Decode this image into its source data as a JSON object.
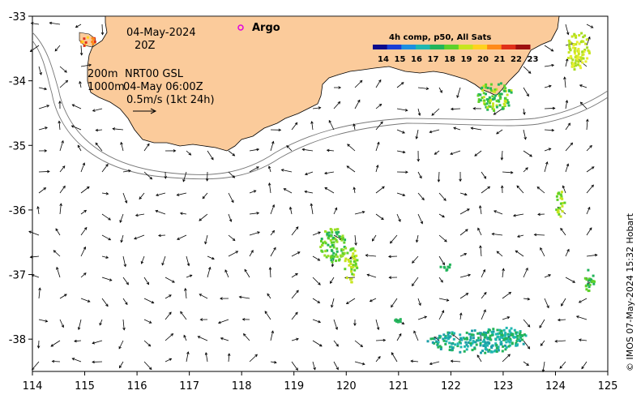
{
  "map": {
    "lon_ticks": [
      "114",
      "115",
      "116",
      "117",
      "118",
      "119",
      "120",
      "121",
      "122",
      "123",
      "124",
      "125"
    ],
    "lat_ticks": [
      "-33",
      "-34",
      "-35",
      "-36",
      "-37",
      "-38"
    ],
    "lon_range": [
      114,
      125
    ],
    "lat_range": [
      -38.5,
      -33
    ]
  },
  "annotations": {
    "date": "04-May-2024",
    "hour": "20Z",
    "isobath_shallow": "200m",
    "isobath_deep": "1000m",
    "current_product": "NRT00 GSL",
    "current_time": "04-May 06:00Z",
    "scale_text": "0.5m/s (1kt 24h)",
    "argo_label": "Argo"
  },
  "colorbar": {
    "title": "4h comp, p50, All Sats",
    "labels": [
      "14",
      "15",
      "16",
      "17",
      "18",
      "19",
      "20",
      "21",
      "22",
      "23"
    ],
    "colors": [
      "#0b0b8c",
      "#1a3fd6",
      "#1d8fe0",
      "#1fb7b0",
      "#22b45a",
      "#5ed12a",
      "#c7e51f",
      "#ffd21f",
      "#ff8a1a",
      "#e0301a",
      "#9e1010"
    ]
  },
  "credit": "© IMOS 07-May-2024 15:32 Hobart",
  "colors": {
    "land": "#fbcb9b",
    "argo": "#e000e0"
  }
}
